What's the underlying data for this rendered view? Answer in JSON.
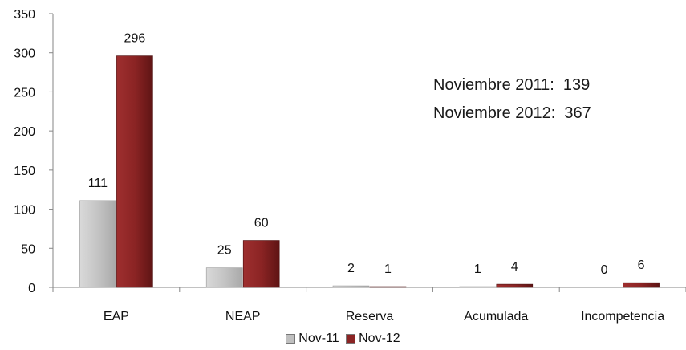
{
  "chart_data": {
    "type": "bar",
    "categories": [
      "EAP",
      "NEAP",
      "Reserva",
      "Acumulada",
      "Incompetencia"
    ],
    "series": [
      {
        "name": "Nov-11",
        "values": [
          111,
          25,
          2,
          1,
          0
        ],
        "color": "#bfbfbf"
      },
      {
        "name": "Nov-12",
        "values": [
          296,
          60,
          1,
          4,
          6
        ],
        "color": "#8b2424"
      }
    ],
    "ylim": [
      0,
      350
    ],
    "yticks": [
      0,
      50,
      100,
      150,
      200,
      250,
      300,
      350
    ],
    "grid": false,
    "legend_position": "bottom",
    "annotations": [
      "Noviembre 2011:  139",
      "Noviembre 2012:  367"
    ]
  }
}
